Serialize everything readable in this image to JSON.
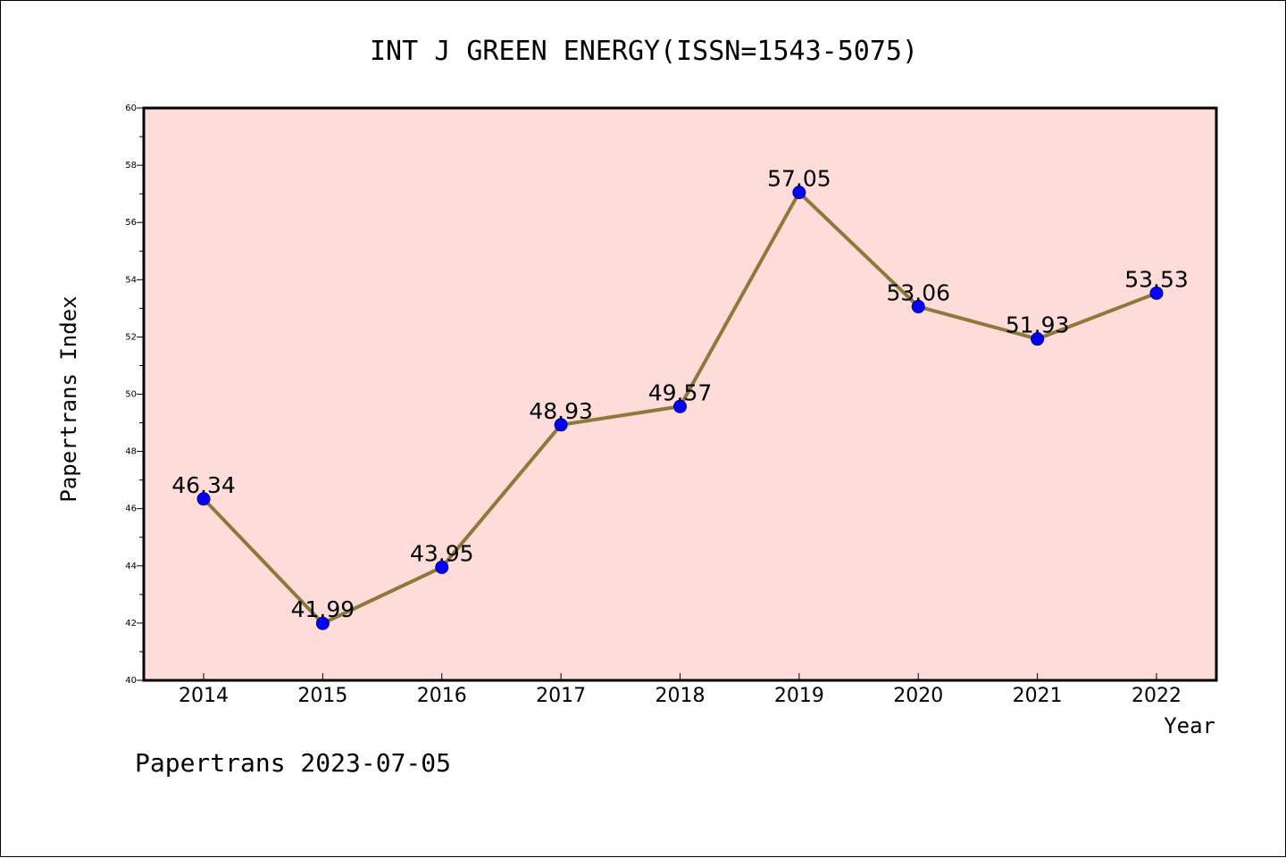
{
  "chart_data": {
    "type": "line",
    "title": "INT J GREEN ENERGY(ISSN=1543-5075)",
    "xlabel": "Year",
    "ylabel": "Papertrans Index",
    "categories": [
      "2014",
      "2015",
      "2016",
      "2017",
      "2018",
      "2019",
      "2020",
      "2021",
      "2022"
    ],
    "series": [
      {
        "values": [
          46.34,
          41.99,
          43.95,
          48.93,
          49.57,
          57.05,
          53.06,
          51.93,
          53.53
        ]
      }
    ],
    "data_labels": [
      "46.34",
      "41.99",
      "43.95",
      "48.93",
      "49.57",
      "57.05",
      "53.06",
      "51.93",
      "53.53"
    ],
    "ylim": [
      40,
      60
    ],
    "yticks": [
      "40",
      "42",
      "44",
      "46",
      "48",
      "50",
      "52",
      "54",
      "56",
      "58",
      "60"
    ],
    "grid": false,
    "colors": {
      "plot_background": "#fddcd9",
      "line": "#8c7a3a",
      "marker": "#0000ff"
    }
  },
  "footer": {
    "text": "Papertrans 2023-07-05"
  }
}
